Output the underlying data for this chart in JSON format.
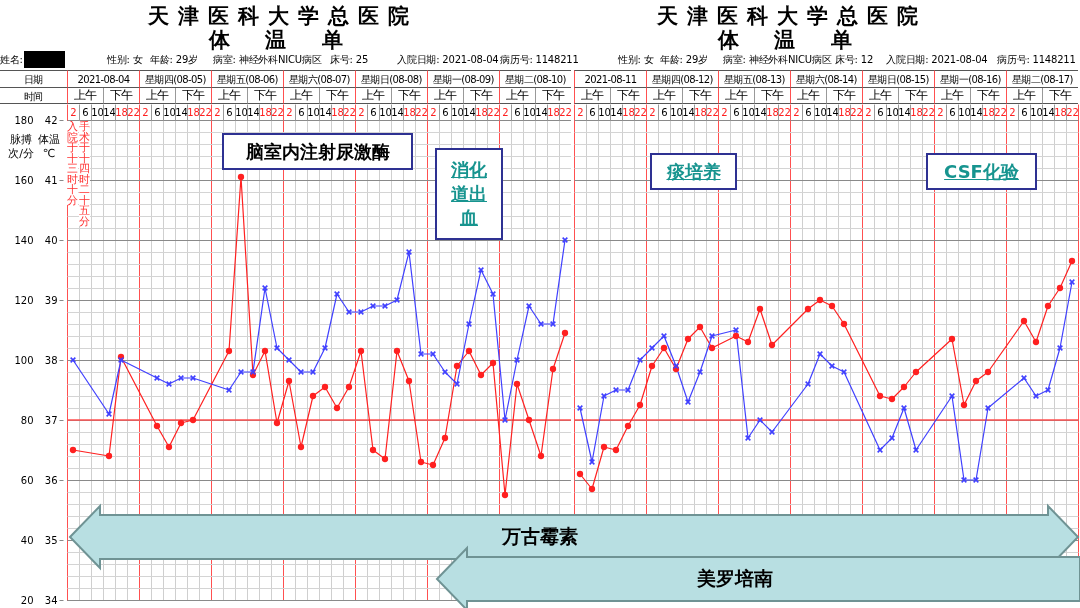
{
  "chart_data": [
    {
      "type": "line",
      "title": "天津医科大学总医院",
      "subtitle": "体 温 单",
      "categories": [
        "2",
        "6",
        "10",
        "14",
        "18",
        "22",
        "2",
        "6",
        "10",
        "14",
        "18",
        "22",
        "2",
        "6",
        "10",
        "14",
        "18",
        "22",
        "2",
        "6",
        "10",
        "14",
        "18",
        "22",
        "2",
        "6",
        "10",
        "14",
        "18",
        "22",
        "2",
        "6",
        "10",
        "14",
        "18",
        "22",
        "2",
        "6",
        "10",
        "14",
        "18",
        "22"
      ],
      "series": [
        {
          "color": "#ff2020",
          "marker": "circle",
          "values": [
            70,
            null,
            null,
            68,
            101,
            null,
            null,
            78,
            71,
            79,
            80,
            null,
            null,
            103,
            161,
            95,
            103,
            79,
            93,
            71,
            88,
            91,
            84,
            91,
            103,
            70,
            67,
            103,
            93,
            66,
            65,
            74,
            98,
            103,
            95,
            99,
            55,
            92,
            80,
            68,
            97,
            109
          ]
        },
        {
          "color": "#4040ff",
          "marker": "cross",
          "axis": "y2",
          "values": [
            38.0,
            null,
            null,
            37.1,
            38.0,
            null,
            null,
            37.7,
            37.6,
            37.7,
            37.7,
            null,
            null,
            37.5,
            37.8,
            37.8,
            39.2,
            38.2,
            38.0,
            37.8,
            37.8,
            38.2,
            39.1,
            38.8,
            38.8,
            38.9,
            38.9,
            39.0,
            39.8,
            38.1,
            38.1,
            37.8,
            37.6,
            38.6,
            39.5,
            39.1,
            37.0,
            38.0,
            38.9,
            38.6,
            38.6,
            40.0
          ]
        }
      ],
      "ylim": [
        20,
        180
      ],
      "yticks": [
        20,
        40,
        60,
        80,
        100,
        120,
        140,
        160,
        180
      ],
      "ylabel": "脉搏次/分",
      "y2lim": [
        34,
        42
      ],
      "y2ticks": [
        34,
        35,
        36,
        37,
        38,
        39,
        40,
        41,
        42
      ],
      "y2label": "体温℃",
      "grid": true,
      "ref_lines": [
        {
          "axis": "y2",
          "value": 37,
          "color": "#ff5050"
        }
      ],
      "annotations": [
        "姓名:",
        "性别: 女",
        "年龄: 29岁",
        "病室: 神经外科NICU病区",
        "床号: 25",
        "入院日期: 2021-08-04",
        "病历号: 1148211",
        "日期",
        "2021-08-04",
        "星期四(08-05)",
        "星期五(08-06)",
        "星期六(08-07)",
        "星期日(08-08)",
        "星期一(08-09)",
        "星期二(08-10)",
        "时间",
        "上午",
        "下午",
        "上午",
        "下午",
        "上午",
        "下午",
        "上午",
        "下午",
        "上午",
        "下午",
        "上午",
        "下午",
        "上午",
        "下午",
        "入院于十三时十分",
        "手术于十四时二十五分",
        "脑室内注射尿激酶",
        "消化道出血",
        "万古霉素"
      ]
    },
    {
      "type": "line",
      "title": "天津医科大学总医院",
      "subtitle": "体 温 单",
      "categories": [
        "2",
        "6",
        "10",
        "14",
        "18",
        "22",
        "2",
        "6",
        "10",
        "14",
        "18",
        "22",
        "2",
        "6",
        "10",
        "14",
        "18",
        "22",
        "2",
        "6",
        "10",
        "14",
        "18",
        "22",
        "2",
        "6",
        "10",
        "14",
        "18",
        "22",
        "2",
        "6",
        "10",
        "14",
        "18",
        "22",
        "2",
        "6",
        "10",
        "14",
        "18",
        "22"
      ],
      "series": [
        {
          "color": "#ff2020",
          "marker": "circle",
          "values": [
            62,
            57,
            71,
            70,
            78,
            85,
            98,
            104,
            97,
            107,
            111,
            104,
            null,
            108,
            106,
            117,
            105,
            null,
            null,
            117,
            120,
            118,
            112,
            null,
            null,
            88,
            87,
            91,
            96,
            null,
            null,
            107,
            85,
            93,
            96,
            null,
            null,
            113,
            106,
            118,
            124,
            133
          ]
        },
        {
          "color": "#4040ff",
          "marker": "cross",
          "axis": "y2",
          "values": [
            37.2,
            36.3,
            37.4,
            37.5,
            37.5,
            38.0,
            38.2,
            38.4,
            37.9,
            37.3,
            37.8,
            38.4,
            null,
            38.5,
            36.7,
            37.0,
            36.8,
            null,
            null,
            37.6,
            38.1,
            37.9,
            37.8,
            null,
            null,
            36.5,
            36.7,
            37.2,
            36.5,
            null,
            null,
            37.4,
            36.0,
            36.0,
            37.2,
            null,
            null,
            37.7,
            37.4,
            37.5,
            38.2,
            39.3
          ]
        }
      ],
      "ylim": [
        20,
        180
      ],
      "yticks": [
        20,
        40,
        60,
        80,
        100,
        120,
        140,
        160,
        180
      ],
      "y2lim": [
        34,
        42
      ],
      "y2ticks": [
        34,
        35,
        36,
        37,
        38,
        39,
        40,
        41,
        42
      ],
      "grid": true,
      "tick_labels": "x",
      "ref_lines": [
        {
          "axis": "y2",
          "value": 37,
          "color": "#ff5050"
        }
      ],
      "annotations": [
        "性别: 女",
        "年龄: 29岁",
        "病室: 神经外科NICU病区",
        "床号: 12",
        "入院日期: 2021-08-04",
        "病历号: 1148211",
        "2021-08-11",
        "星期四(08-12)",
        "星期五(08-13)",
        "星期六(08-14)",
        "星期日(08-15)",
        "星期一(08-16)",
        "星期二(08-17)",
        "上午",
        "下午",
        "上午",
        "下午",
        "上午",
        "下午",
        "上午",
        "下午",
        "上午",
        "下午",
        "上午",
        "下午",
        "上午",
        "下午",
        "痰培养",
        "CSF化验",
        "美罗培南"
      ]
    }
  ]
}
